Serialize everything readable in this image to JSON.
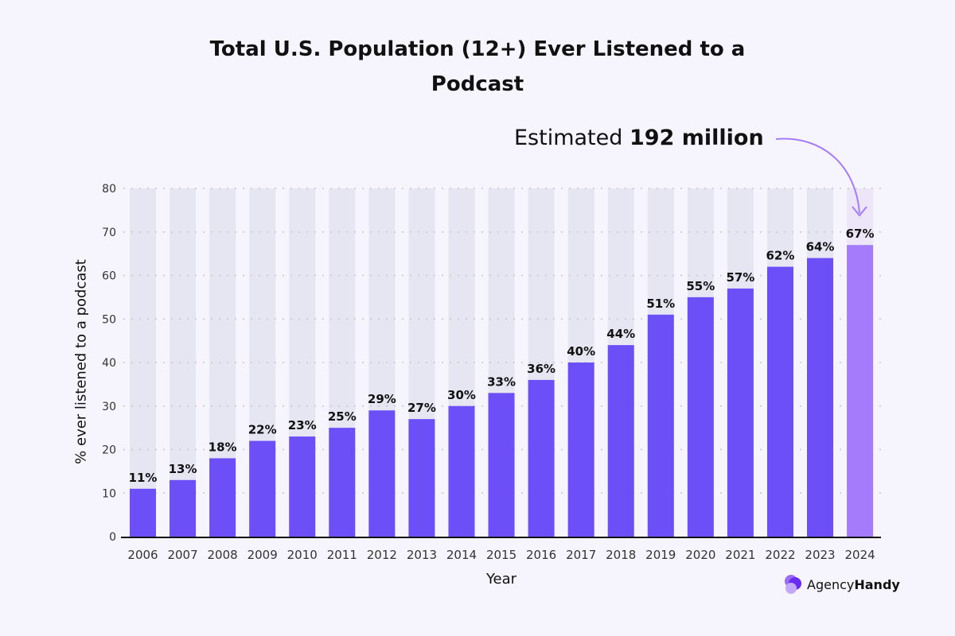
{
  "chart_data": {
    "type": "bar",
    "title": "Total U.S. Population (12+) Ever Listened to a Podcast",
    "xlabel": "Year",
    "ylabel": "% ever listened to a podcast",
    "ylim": [
      0,
      80
    ],
    "yticks": [
      0,
      10,
      20,
      30,
      40,
      50,
      60,
      70,
      80
    ],
    "grid": true,
    "categories": [
      "2006",
      "2007",
      "2008",
      "2009",
      "2010",
      "2011",
      "2012",
      "2013",
      "2014",
      "2015",
      "2016",
      "2017",
      "2018",
      "2019",
      "2020",
      "2021",
      "2022",
      "2023",
      "2024"
    ],
    "values": [
      11,
      13,
      18,
      22,
      23,
      25,
      29,
      27,
      30,
      33,
      36,
      40,
      44,
      51,
      55,
      57,
      62,
      64,
      67
    ],
    "data_labels": [
      "11%",
      "13%",
      "18%",
      "22%",
      "23%",
      "25%",
      "29%",
      "27%",
      "30%",
      "33%",
      "36%",
      "40%",
      "44%",
      "51%",
      "55%",
      "57%",
      "62%",
      "64%",
      "67%"
    ],
    "annotation": {
      "prefix": "Estimated",
      "emphasis": "192 million",
      "target": "2024"
    },
    "colors": {
      "bar": "#6c4ff6",
      "highlight": "#a47cfb",
      "track": "#e6e5f2",
      "background": "#f6f4fd"
    }
  },
  "brand": {
    "name_light": "Agency",
    "name_bold": "Handy"
  }
}
